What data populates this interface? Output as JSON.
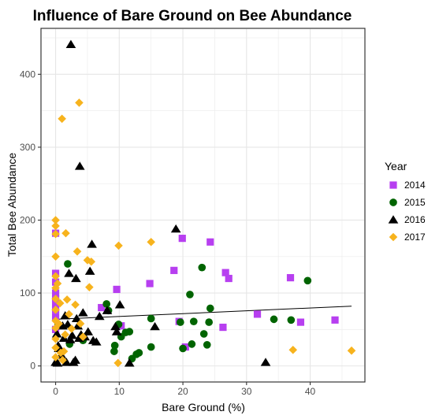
{
  "chart_data": {
    "type": "scatter",
    "title": "Influence of Bare Ground on Bee Abundance",
    "xlabel": "Bare Ground (%)",
    "ylabel": "Total Bee Abundance",
    "xlim": [
      -2.3,
      48.6
    ],
    "ylim": [
      -22,
      463
    ],
    "x_ticks": [
      0,
      10,
      20,
      30,
      40
    ],
    "y_ticks": [
      0,
      100,
      200,
      300,
      400
    ],
    "grid": true,
    "legend": {
      "title": "Year",
      "position": "right"
    },
    "trendline": {
      "x": [
        0,
        46.5
      ],
      "y": [
        64,
        82
      ],
      "color": "#000000"
    },
    "series": [
      {
        "name": "2014",
        "shape": "square",
        "color": "#b73ff0",
        "points": [
          [
            0,
            182
          ],
          [
            0,
            127
          ],
          [
            0,
            115
          ],
          [
            0,
            100
          ],
          [
            0,
            92
          ],
          [
            0,
            85
          ],
          [
            0,
            78
          ],
          [
            0,
            68
          ],
          [
            0,
            50
          ],
          [
            7.2,
            80
          ],
          [
            9.6,
            105
          ],
          [
            10.3,
            55
          ],
          [
            14.8,
            113
          ],
          [
            18.6,
            131
          ],
          [
            19.4,
            61
          ],
          [
            19.9,
            175
          ],
          [
            20.4,
            26
          ],
          [
            24.3,
            170
          ],
          [
            26.3,
            53
          ],
          [
            26.7,
            128
          ],
          [
            27.2,
            120
          ],
          [
            31.7,
            71
          ],
          [
            36.9,
            121
          ],
          [
            38.5,
            60
          ],
          [
            43.9,
            63
          ]
        ]
      },
      {
        "name": "2015",
        "shape": "circle",
        "color": "#006400",
        "points": [
          [
            0.4,
            57
          ],
          [
            1.9,
            140
          ],
          [
            2.2,
            30
          ],
          [
            4.3,
            35
          ],
          [
            8.0,
            85
          ],
          [
            8.3,
            76
          ],
          [
            9.2,
            20
          ],
          [
            9.3,
            28
          ],
          [
            9.9,
            57
          ],
          [
            10.3,
            40
          ],
          [
            11.0,
            46
          ],
          [
            11.6,
            47
          ],
          [
            12.0,
            10
          ],
          [
            12.7,
            16
          ],
          [
            13.1,
            18
          ],
          [
            15.0,
            26
          ],
          [
            15.0,
            65
          ],
          [
            19.6,
            60
          ],
          [
            20.0,
            24
          ],
          [
            21.1,
            98
          ],
          [
            21.4,
            30
          ],
          [
            21.7,
            61
          ],
          [
            23.0,
            135
          ],
          [
            23.3,
            44
          ],
          [
            23.8,
            29
          ],
          [
            24.1,
            60
          ],
          [
            24.3,
            79
          ],
          [
            34.3,
            64
          ],
          [
            37.0,
            63
          ],
          [
            39.6,
            117
          ]
        ]
      },
      {
        "name": "2016",
        "shape": "triangle",
        "color": "#000000",
        "points": [
          [
            0,
            5
          ],
          [
            0.2,
            44
          ],
          [
            0.3,
            4
          ],
          [
            0.4,
            28
          ],
          [
            0.5,
            24
          ],
          [
            0.9,
            15
          ],
          [
            1.1,
            55
          ],
          [
            1.3,
            38
          ],
          [
            1.5,
            69
          ],
          [
            1.7,
            5
          ],
          [
            1.9,
            57
          ],
          [
            2.1,
            127
          ],
          [
            2.3,
            36
          ],
          [
            2.4,
            441
          ],
          [
            2.6,
            42
          ],
          [
            2.8,
            5
          ],
          [
            3.1,
            8
          ],
          [
            3.2,
            120
          ],
          [
            3.3,
            65
          ],
          [
            3.5,
            55
          ],
          [
            3.7,
            38
          ],
          [
            3.8,
            274
          ],
          [
            4.0,
            43
          ],
          [
            4.3,
            73
          ],
          [
            4.6,
            40
          ],
          [
            5.1,
            47
          ],
          [
            5.4,
            130
          ],
          [
            5.7,
            167
          ],
          [
            5.9,
            35
          ],
          [
            6.4,
            33
          ],
          [
            6.9,
            68
          ],
          [
            8.1,
            76
          ],
          [
            9.4,
            54
          ],
          [
            9.6,
            47
          ],
          [
            10.1,
            84
          ],
          [
            11.6,
            4
          ],
          [
            15.6,
            54
          ],
          [
            18.9,
            188
          ],
          [
            33.0,
            5
          ]
        ]
      },
      {
        "name": "2017",
        "shape": "diamond",
        "color": "#f7b31d",
        "points": [
          [
            0,
            200
          ],
          [
            0,
            192
          ],
          [
            0,
            181
          ],
          [
            0,
            150
          ],
          [
            0,
            123
          ],
          [
            0,
            107
          ],
          [
            0,
            92
          ],
          [
            0,
            77
          ],
          [
            0,
            62
          ],
          [
            0,
            52
          ],
          [
            0,
            37
          ],
          [
            0,
            25
          ],
          [
            0,
            12
          ],
          [
            0.3,
            113
          ],
          [
            0.5,
            58
          ],
          [
            0.7,
            86
          ],
          [
            0.8,
            18
          ],
          [
            1.0,
            339
          ],
          [
            1.1,
            8
          ],
          [
            1.3,
            20
          ],
          [
            1.5,
            43
          ],
          [
            1.6,
            182
          ],
          [
            1.8,
            91
          ],
          [
            2.1,
            71
          ],
          [
            2.5,
            51
          ],
          [
            3.1,
            84
          ],
          [
            3.4,
            157
          ],
          [
            3.7,
            361
          ],
          [
            3.9,
            58
          ],
          [
            4.3,
            40
          ],
          [
            5.0,
            145
          ],
          [
            5.3,
            108
          ],
          [
            5.6,
            143
          ],
          [
            9.8,
            4
          ],
          [
            9.9,
            165
          ],
          [
            15.0,
            170
          ],
          [
            37.3,
            22
          ],
          [
            46.5,
            21
          ]
        ]
      }
    ]
  }
}
